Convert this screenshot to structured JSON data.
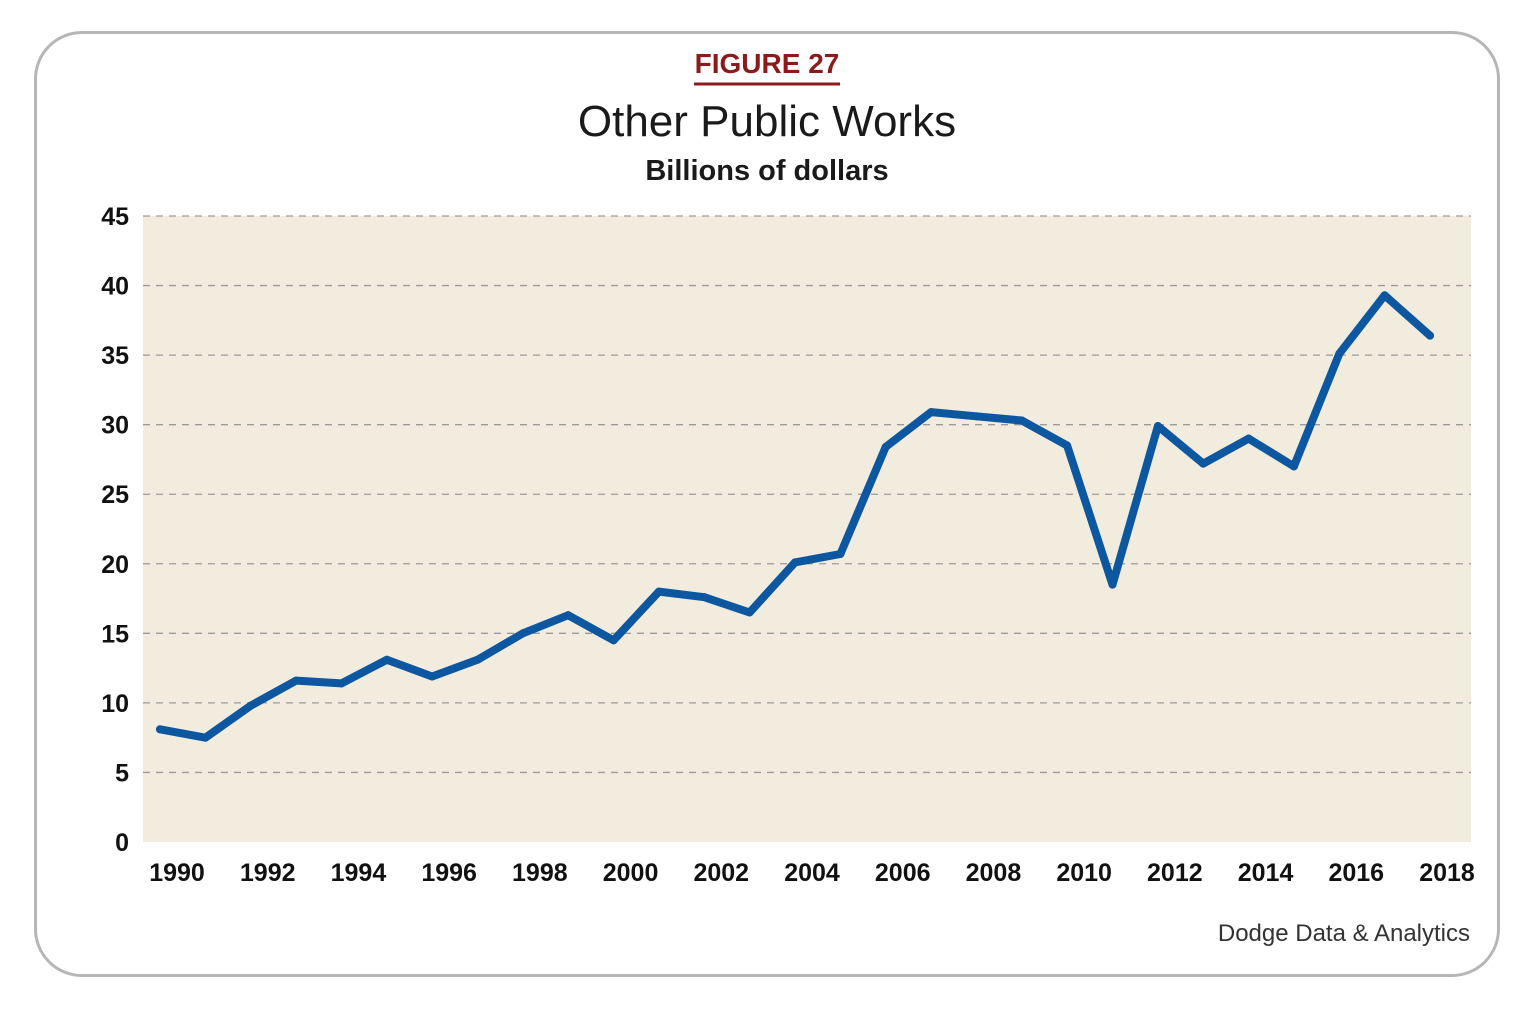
{
  "figure_label": "FIGURE 27",
  "source": "Dodge Data & Analytics",
  "colors": {
    "plot_background": "#f2ecdf",
    "line": "#0c57a0",
    "figure_label": "#8b1b1b",
    "grid": "#9a9a9a"
  },
  "chart_data": {
    "type": "line",
    "title": "Other Public Works",
    "subtitle": "Billions of dollars",
    "xlabel": "",
    "ylabel": "",
    "ylim": [
      0,
      45
    ],
    "y_ticks": [
      "0",
      "5",
      "10",
      "15",
      "20",
      "25",
      "30",
      "35",
      "40",
      "45"
    ],
    "x_ticks": [
      "1990",
      "1992",
      "1994",
      "1996",
      "1998",
      "2000",
      "2002",
      "2004",
      "2006",
      "2008",
      "2010",
      "2012",
      "2014",
      "2016",
      "2018"
    ],
    "grid": "horizontal dashed",
    "legend": "none",
    "x": [
      1990,
      1991,
      1992,
      1993,
      1994,
      1995,
      1996,
      1997,
      1998,
      1999,
      2000,
      2001,
      2002,
      2003,
      2004,
      2005,
      2006,
      2007,
      2008,
      2009,
      2010,
      2011,
      2012,
      2013,
      2014,
      2015,
      2016,
      2017,
      2018
    ],
    "series": [
      {
        "values": [
          8.1,
          7.5,
          9.8,
          11.6,
          11.4,
          13.1,
          11.9,
          13.1,
          15.0,
          16.3,
          14.5,
          18.0,
          17.6,
          16.5,
          20.1,
          20.7,
          28.4,
          30.9,
          30.6,
          30.3,
          28.5,
          18.5,
          29.9,
          27.2,
          29.0,
          27.0,
          35.1,
          39.3,
          36.4
        ]
      }
    ]
  }
}
